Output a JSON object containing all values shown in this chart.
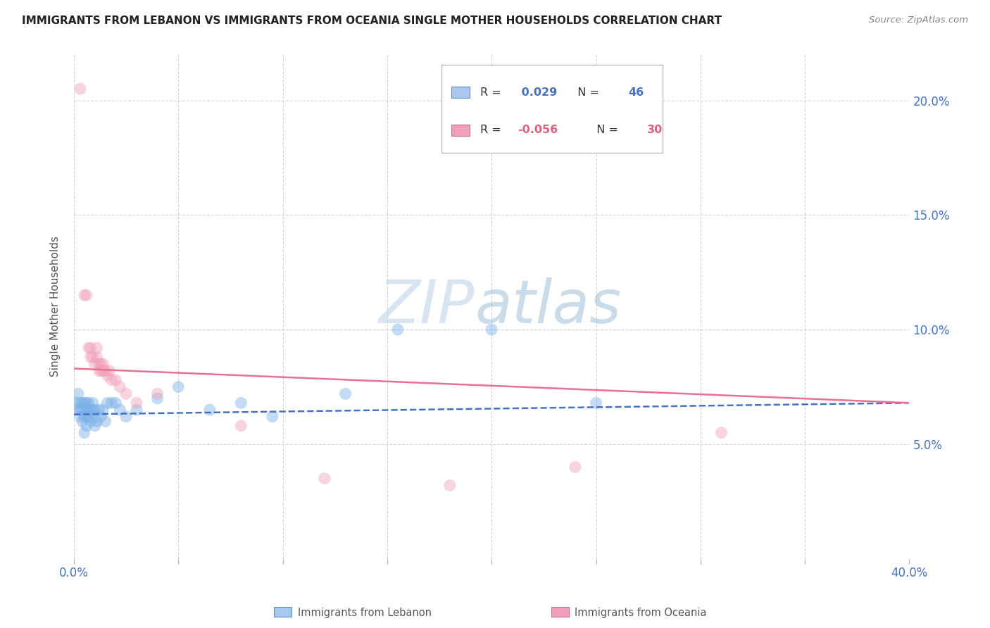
{
  "title": "IMMIGRANTS FROM LEBANON VS IMMIGRANTS FROM OCEANIA SINGLE MOTHER HOUSEHOLDS CORRELATION CHART",
  "source": "Source: ZipAtlas.com",
  "ylabel_left": "Single Mother Households",
  "watermark_zip": "ZIP",
  "watermark_atlas": "atlas",
  "xlim": [
    0.0,
    0.4
  ],
  "ylim": [
    0.0,
    0.22
  ],
  "xticks": [
    0.0,
    0.05,
    0.1,
    0.15,
    0.2,
    0.25,
    0.3,
    0.35,
    0.4
  ],
  "xtick_labels": [
    "0.0%",
    "",
    "",
    "",
    "",
    "",
    "",
    "",
    "40.0%"
  ],
  "yticks_right": [
    0.05,
    0.1,
    0.15,
    0.2
  ],
  "ytick_labels_right": [
    "5.0%",
    "10.0%",
    "15.0%",
    "20.0%"
  ],
  "legend_R1": "R = ",
  "legend_V1": " 0.029",
  "legend_N1": "N = ",
  "legend_NV1": "46",
  "legend_R2": "R = ",
  "legend_V2": "-0.056",
  "legend_N2": "N = ",
  "legend_NV2": "30",
  "series_lebanon": {
    "color": "#a8c8f0",
    "scatter_color": "#7ab0e8",
    "x": [
      0.001,
      0.002,
      0.002,
      0.003,
      0.003,
      0.003,
      0.004,
      0.004,
      0.004,
      0.005,
      0.005,
      0.005,
      0.006,
      0.006,
      0.006,
      0.006,
      0.007,
      0.007,
      0.007,
      0.008,
      0.008,
      0.009,
      0.009,
      0.01,
      0.01,
      0.01,
      0.011,
      0.012,
      0.013,
      0.014,
      0.015,
      0.016,
      0.018,
      0.02,
      0.022,
      0.025,
      0.03,
      0.04,
      0.05,
      0.065,
      0.08,
      0.095,
      0.13,
      0.155,
      0.2,
      0.25
    ],
    "y": [
      0.068,
      0.072,
      0.065,
      0.068,
      0.065,
      0.062,
      0.068,
      0.065,
      0.06,
      0.068,
      0.062,
      0.055,
      0.068,
      0.065,
      0.062,
      0.058,
      0.068,
      0.065,
      0.062,
      0.065,
      0.06,
      0.068,
      0.065,
      0.065,
      0.062,
      0.058,
      0.06,
      0.065,
      0.062,
      0.065,
      0.06,
      0.068,
      0.068,
      0.068,
      0.065,
      0.062,
      0.065,
      0.07,
      0.075,
      0.065,
      0.068,
      0.062,
      0.072,
      0.1,
      0.1,
      0.068
    ],
    "trend_x": [
      0.0,
      0.4
    ],
    "trend_y": [
      0.063,
      0.068
    ],
    "line_color": "#4472c4",
    "line_style": "--",
    "line_width": 1.8
  },
  "series_oceania": {
    "color": "#f0a0b8",
    "scatter_color": "#f0a0b8",
    "x": [
      0.003,
      0.005,
      0.006,
      0.007,
      0.008,
      0.008,
      0.009,
      0.01,
      0.011,
      0.011,
      0.012,
      0.012,
      0.013,
      0.013,
      0.014,
      0.014,
      0.015,
      0.016,
      0.017,
      0.018,
      0.02,
      0.022,
      0.025,
      0.03,
      0.04,
      0.08,
      0.12,
      0.18,
      0.24,
      0.31
    ],
    "y": [
      0.205,
      0.115,
      0.115,
      0.092,
      0.092,
      0.088,
      0.088,
      0.085,
      0.092,
      0.088,
      0.085,
      0.082,
      0.085,
      0.082,
      0.085,
      0.082,
      0.082,
      0.08,
      0.082,
      0.078,
      0.078,
      0.075,
      0.072,
      0.068,
      0.072,
      0.058,
      0.035,
      0.032,
      0.04,
      0.055
    ],
    "trend_x": [
      0.0,
      0.4
    ],
    "trend_y": [
      0.083,
      0.068
    ],
    "line_color": "#e87090",
    "line_style": "-",
    "line_width": 1.8
  },
  "background_color": "#ffffff",
  "grid_color": "#d0d0d0",
  "title_color": "#222222",
  "right_axis_color": "#4472c4",
  "left_label_color": "#555555",
  "bottom_label_color": "#555555"
}
